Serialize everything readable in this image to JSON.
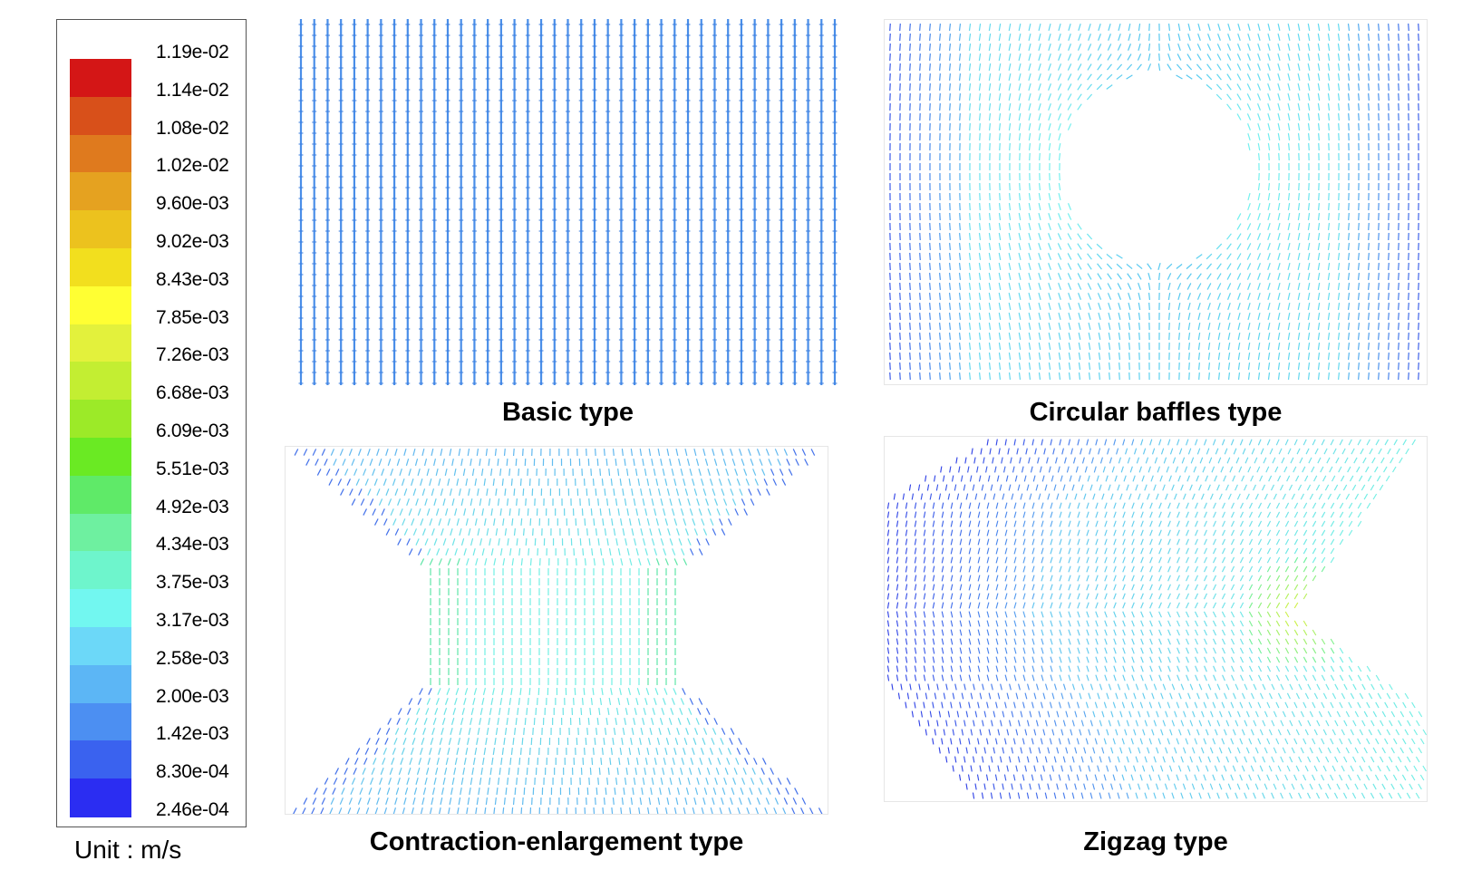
{
  "legend": {
    "ticks": [
      "1.19e-02",
      "1.14e-02",
      "1.08e-02",
      "1.02e-02",
      "9.60e-03",
      "9.02e-03",
      "8.43e-03",
      "7.85e-03",
      "7.26e-03",
      "6.68e-03",
      "6.09e-03",
      "5.51e-03",
      "4.92e-03",
      "4.34e-03",
      "3.75e-03",
      "3.17e-03",
      "2.58e-03",
      "2.00e-03",
      "1.42e-03",
      "8.30e-04",
      "2.46e-04"
    ],
    "colors": [
      "#d41616",
      "#d8501a",
      "#df7a1e",
      "#e5a220",
      "#ecc21e",
      "#f2df1e",
      "#ffff33",
      "#e3f13c",
      "#c3ee32",
      "#9cea28",
      "#6aea23",
      "#5fea68",
      "#6ef0a0",
      "#6ef5cc",
      "#72f7f0",
      "#6cd8f8",
      "#5cb6f5",
      "#4c8ff2",
      "#3a62ef",
      "#2b2df2"
    ],
    "unit": "Unit : m/s"
  },
  "panels": {
    "basic": {
      "caption": "Basic type"
    },
    "circular": {
      "caption": "Circular baffles type"
    },
    "contraction": {
      "caption": "Contraction-enlargement type"
    },
    "zigzag": {
      "caption": "Zigzag type"
    }
  }
}
